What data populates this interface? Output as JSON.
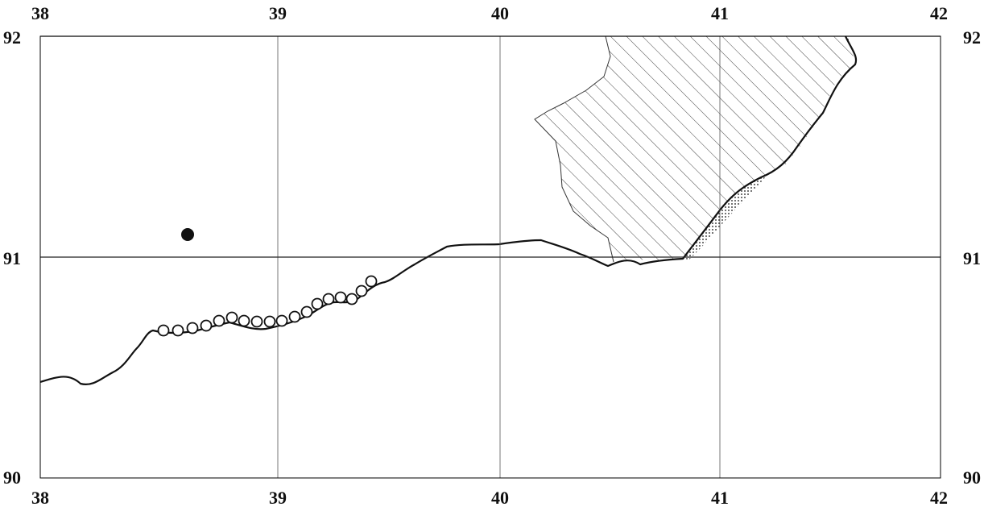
{
  "map": {
    "x_ticks": [
      "38",
      "39",
      "40",
      "41",
      "42"
    ],
    "y_ticks": [
      "92",
      "91",
      "90"
    ],
    "colors": {
      "ink": "#111111",
      "grid": "#555555",
      "hatch": "#444444",
      "background": "#ffffff"
    },
    "features": {
      "coastline": "solid black line",
      "hatched_region": "diagonal hatch fill",
      "stippled_strip": "dotted fill",
      "open_circles": 18,
      "filled_circle": 1
    }
  }
}
